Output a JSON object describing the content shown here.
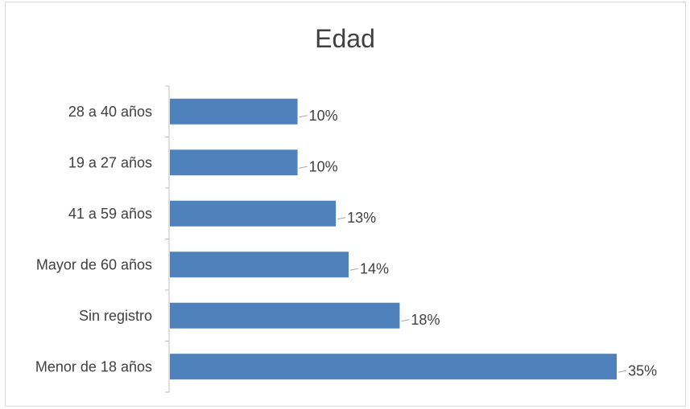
{
  "chart_data": {
    "type": "bar",
    "orientation": "horizontal",
    "title": "Edad",
    "categories": [
      "28 a 40 años",
      "19 a 27 años",
      "41 a 59 años",
      "Mayor de 60 años",
      "Sin registro",
      "Menor de 18 años"
    ],
    "values": [
      10,
      10,
      13,
      14,
      18,
      35
    ],
    "value_labels": [
      "10%",
      "10%",
      "13%",
      "14%",
      "18%",
      "35%"
    ],
    "unit": "%",
    "xlabel": "",
    "ylabel": "",
    "grid": false,
    "legend": "none",
    "bar_color": "#4f81bd"
  }
}
